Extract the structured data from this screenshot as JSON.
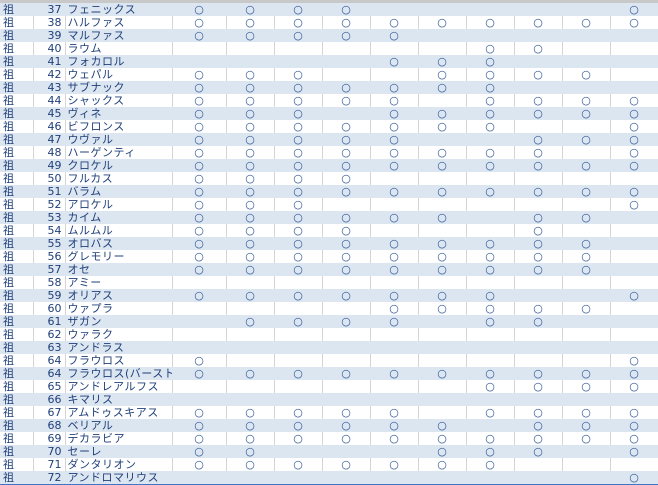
{
  "colors": {
    "row_alt": "#dce6f1",
    "text": "#1f3f7a",
    "mark": "#2f5597"
  },
  "rows": [
    {
      "kanji": "祖",
      "no": "37",
      "name": "フェニックス",
      "marks": [
        "○",
        "○",
        "○",
        "○",
        "",
        "",
        "",
        "",
        "",
        "○"
      ]
    },
    {
      "kanji": "祖",
      "no": "38",
      "name": "ハルファス",
      "marks": [
        "○",
        "○",
        "○",
        "○",
        "○",
        "○",
        "○",
        "○",
        "○",
        "○"
      ]
    },
    {
      "kanji": "祖",
      "no": "39",
      "name": "マルファス",
      "marks": [
        "○",
        "○",
        "○",
        "○",
        "○",
        "",
        "",
        "",
        "",
        ""
      ]
    },
    {
      "kanji": "祖",
      "no": "40",
      "name": "ラウム",
      "marks": [
        "",
        "",
        "",
        "",
        "",
        "",
        "○",
        "○",
        "",
        ""
      ]
    },
    {
      "kanji": "祖",
      "no": "41",
      "name": "フォカロル",
      "marks": [
        "",
        "",
        "",
        "",
        "○",
        "○",
        "○",
        "",
        "",
        ""
      ]
    },
    {
      "kanji": "祖",
      "no": "42",
      "name": "ウェパル",
      "marks": [
        "○",
        "○",
        "○",
        "",
        "",
        "○",
        "○",
        "○",
        "○",
        ""
      ]
    },
    {
      "kanji": "祖",
      "no": "43",
      "name": "サブナック",
      "marks": [
        "○",
        "○",
        "○",
        "○",
        "○",
        "○",
        "○",
        "",
        "",
        ""
      ]
    },
    {
      "kanji": "祖",
      "no": "44",
      "name": "シャックス",
      "marks": [
        "○",
        "○",
        "○",
        "○",
        "○",
        "",
        "○",
        "○",
        "○",
        "○"
      ]
    },
    {
      "kanji": "祖",
      "no": "45",
      "name": "ヴィネ",
      "marks": [
        "○",
        "○",
        "○",
        "",
        "○",
        "○",
        "○",
        "○",
        "○",
        "○"
      ]
    },
    {
      "kanji": "祖",
      "no": "46",
      "name": "ビフロンス",
      "marks": [
        "○",
        "○",
        "○",
        "○",
        "○",
        "○",
        "○",
        "",
        "",
        "○"
      ]
    },
    {
      "kanji": "祖",
      "no": "47",
      "name": "ウヴァル",
      "marks": [
        "○",
        "○",
        "○",
        "○",
        "○",
        "",
        "",
        "○",
        "○",
        "○"
      ]
    },
    {
      "kanji": "祖",
      "no": "48",
      "name": "ハーゲンティ",
      "marks": [
        "○",
        "○",
        "○",
        "○",
        "○",
        "○",
        "○",
        "○",
        "",
        "○"
      ]
    },
    {
      "kanji": "祖",
      "no": "49",
      "name": "クロケル",
      "marks": [
        "○",
        "○",
        "○",
        "○",
        "○",
        "○",
        "○",
        "○",
        "○",
        "○"
      ]
    },
    {
      "kanji": "祖",
      "no": "50",
      "name": "フルカス",
      "marks": [
        "○",
        "○",
        "○",
        "○",
        "",
        "",
        "",
        "",
        "",
        ""
      ]
    },
    {
      "kanji": "祖",
      "no": "51",
      "name": "バラム",
      "marks": [
        "○",
        "○",
        "○",
        "○",
        "○",
        "○",
        "○",
        "○",
        "○",
        "○"
      ]
    },
    {
      "kanji": "祖",
      "no": "52",
      "name": "アロケル",
      "marks": [
        "○",
        "○",
        "○",
        "",
        "",
        "",
        "",
        "",
        "",
        "○"
      ]
    },
    {
      "kanji": "祖",
      "no": "53",
      "name": "カイム",
      "marks": [
        "○",
        "○",
        "○",
        "○",
        "○",
        "○",
        "",
        "○",
        "○",
        ""
      ]
    },
    {
      "kanji": "祖",
      "no": "54",
      "name": "ムルムル",
      "marks": [
        "○",
        "○",
        "○",
        "○",
        "",
        "",
        "",
        "○",
        "",
        ""
      ]
    },
    {
      "kanji": "祖",
      "no": "55",
      "name": "オロバス",
      "marks": [
        "○",
        "○",
        "○",
        "○",
        "○",
        "○",
        "○",
        "○",
        "○",
        ""
      ]
    },
    {
      "kanji": "祖",
      "no": "56",
      "name": "グレモリー",
      "marks": [
        "○",
        "○",
        "○",
        "○",
        "○",
        "○",
        "○",
        "○",
        "○",
        ""
      ]
    },
    {
      "kanji": "祖",
      "no": "57",
      "name": "オセ",
      "marks": [
        "○",
        "○",
        "○",
        "○",
        "○",
        "○",
        "○",
        "○",
        "○",
        ""
      ]
    },
    {
      "kanji": "祖",
      "no": "58",
      "name": "アミー",
      "marks": [
        "",
        "",
        "",
        "",
        "",
        "",
        "",
        "",
        "",
        ""
      ]
    },
    {
      "kanji": "祖",
      "no": "59",
      "name": "オリアス",
      "marks": [
        "○",
        "○",
        "○",
        "○",
        "○",
        "○",
        "○",
        "",
        "",
        "○"
      ]
    },
    {
      "kanji": "祖",
      "no": "60",
      "name": "ウァプラ",
      "marks": [
        "",
        "",
        "",
        "",
        "○",
        "○",
        "○",
        "○",
        "○",
        ""
      ]
    },
    {
      "kanji": "祖",
      "no": "61",
      "name": "ザガン",
      "marks": [
        "",
        "○",
        "○",
        "○",
        "○",
        "",
        "○",
        "○",
        "",
        ""
      ]
    },
    {
      "kanji": "祖",
      "no": "62",
      "name": "ウァラク",
      "marks": [
        "",
        "",
        "",
        "",
        "",
        "",
        "",
        "",
        "",
        ""
      ]
    },
    {
      "kanji": "祖",
      "no": "63",
      "name": "アンドラス",
      "marks": [
        "",
        "",
        "",
        "",
        "",
        "",
        "",
        "",
        "",
        ""
      ]
    },
    {
      "kanji": "祖",
      "no": "64",
      "name": "フラウロス",
      "marks": [
        "○",
        "",
        "",
        "",
        "",
        "",
        "",
        "",
        "",
        "○"
      ]
    },
    {
      "kanji": "祖",
      "no": "64",
      "name": "フラウロス(バースト)",
      "marks": [
        "○",
        "○",
        "○",
        "○",
        "○",
        "○",
        "○",
        "○",
        "○",
        "○"
      ]
    },
    {
      "kanji": "祖",
      "no": "65",
      "name": "アンドレアルフス",
      "marks": [
        "",
        "",
        "",
        "",
        "",
        "",
        "○",
        "○",
        "○",
        "○"
      ]
    },
    {
      "kanji": "祖",
      "no": "66",
      "name": "キマリス",
      "marks": [
        "",
        "",
        "",
        "",
        "",
        "",
        "",
        "",
        "",
        ""
      ]
    },
    {
      "kanji": "祖",
      "no": "67",
      "name": "アムドゥスキアス",
      "marks": [
        "○",
        "○",
        "○",
        "○",
        "○",
        "",
        "○",
        "○",
        "○",
        "○"
      ]
    },
    {
      "kanji": "祖",
      "no": "68",
      "name": "ベリアル",
      "marks": [
        "○",
        "○",
        "○",
        "○",
        "○",
        "○",
        "",
        "○",
        "○",
        "○"
      ]
    },
    {
      "kanji": "祖",
      "no": "69",
      "name": "デカラビア",
      "marks": [
        "○",
        "○",
        "○",
        "○",
        "○",
        "○",
        "○",
        "○",
        "○",
        "○"
      ]
    },
    {
      "kanji": "祖",
      "no": "70",
      "name": "セーレ",
      "marks": [
        "○",
        "○",
        "",
        "",
        "",
        "○",
        "○",
        "○",
        "",
        "○"
      ]
    },
    {
      "kanji": "祖",
      "no": "71",
      "name": "ダンタリオン",
      "marks": [
        "○",
        "○",
        "○",
        "○",
        "○",
        "○",
        "○",
        "",
        "",
        ""
      ]
    },
    {
      "kanji": "祖",
      "no": "72",
      "name": "アンドロマリウス",
      "marks": [
        "",
        "",
        "",
        "",
        "",
        "",
        "",
        "",
        "",
        "○"
      ]
    }
  ]
}
